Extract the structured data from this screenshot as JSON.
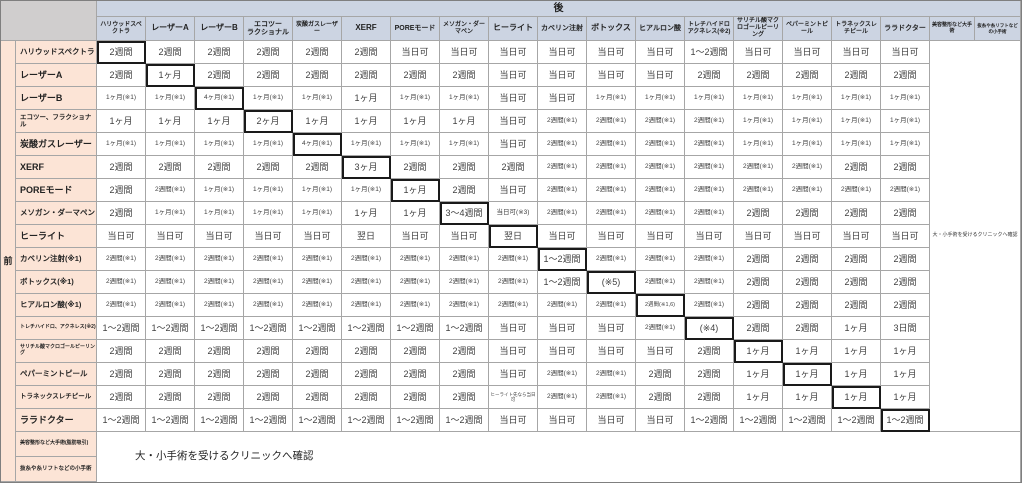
{
  "table": {
    "after_label": "後",
    "before_label": "前",
    "column_headers": [
      "ハリウッドスペクトラ",
      "レーザーA",
      "レーザーB",
      "エコツー\nラクショナル",
      "炭酸ガスレーザー",
      "XERF",
      "POREモード",
      "メソガン・ダーマペン",
      "ヒーライト",
      "カベリン注射",
      "ボトックス",
      "ヒアルロン酸",
      "トレチハイドロアクネレス(※2)",
      "サリチル酸マクロゴールピーリング",
      "ペパーミントピール",
      "トラネックスレチピール",
      "ララドクター",
      "美容整形など大手術",
      "抜糸や糸リフトなどの小手術"
    ],
    "rows": [
      {
        "label": "ハリウッドスペクトラ",
        "cells": [
          "2週間",
          "2週間",
          "2週間",
          "2週間",
          "2週間",
          "2週間",
          "当日可",
          "当日可",
          "当日可",
          "当日可",
          "当日可",
          "当日可",
          "1〜2週間",
          "当日可",
          "当日可",
          "当日可",
          "当日可"
        ]
      },
      {
        "label": "レーザーA",
        "cells": [
          "2週間",
          "1ヶ月",
          "2週間",
          "2週間",
          "2週間",
          "2週間",
          "2週間",
          "2週間",
          "当日可",
          "当日可",
          "当日可",
          "当日可",
          "2週間",
          "2週間",
          "2週間",
          "2週間",
          "2週間"
        ]
      },
      {
        "label": "レーザーB",
        "cells": [
          "1ヶ月(※1)",
          "1ヶ月(※1)",
          "4ヶ月(※1)",
          "1ヶ月(※1)",
          "1ヶ月(※1)",
          "1ヶ月",
          "1ヶ月(※1)",
          "1ヶ月(※1)",
          "当日可",
          "当日可",
          "1ヶ月(※1)",
          "1ヶ月(※1)",
          "1ヶ月(※1)",
          "1ヶ月(※1)",
          "1ヶ月(※1)",
          "1ヶ月(※1)",
          "1ヶ月(※1)"
        ]
      },
      {
        "label": "エコツー、フラクショナル",
        "cells": [
          "1ヶ月",
          "1ヶ月",
          "1ヶ月",
          "2ヶ月",
          "1ヶ月",
          "1ヶ月",
          "1ヶ月",
          "1ヶ月",
          "当日可",
          "2週間(※1)",
          "2週間(※1)",
          "2週間(※1)",
          "2週間(※1)",
          "1ヶ月(※1)",
          "1ヶ月(※1)",
          "1ヶ月(※1)",
          "1ヶ月(※1)"
        ]
      },
      {
        "label": "炭酸ガスレーザー",
        "cells": [
          "1ヶ月(※1)",
          "1ヶ月(※1)",
          "1ヶ月(※1)",
          "1ヶ月(※1)",
          "4ヶ月(※1)",
          "1ヶ月(※1)",
          "1ヶ月(※1)",
          "1ヶ月(※1)",
          "当日可",
          "2週間(※1)",
          "2週間(※1)",
          "2週間(※1)",
          "2週間(※1)",
          "1ヶ月(※1)",
          "1ヶ月(※1)",
          "1ヶ月(※1)",
          "1ヶ月(※1)"
        ]
      },
      {
        "label": "XERF",
        "cells": [
          "2週間",
          "2週間",
          "2週間",
          "2週間",
          "2週間",
          "3ヶ月",
          "2週間",
          "2週間",
          "2週間",
          "2週間(※1)",
          "2週間(※1)",
          "2週間(※1)",
          "2週間(※1)",
          "2週間(※1)",
          "2週間(※1)",
          "2週間",
          "2週間"
        ]
      },
      {
        "label": "POREモード",
        "cells": [
          "2週間",
          "2週間(※1)",
          "1ヶ月(※1)",
          "1ヶ月(※1)",
          "1ヶ月(※1)",
          "1ヶ月(※1)",
          "1ヶ月",
          "2週間",
          "当日可",
          "2週間(※1)",
          "2週間(※1)",
          "2週間(※1)",
          "2週間(※1)",
          "2週間(※1)",
          "2週間(※1)",
          "2週間(※1)",
          "2週間(※1)"
        ]
      },
      {
        "label": "メソガン・ダーマペン",
        "cells": [
          "2週間",
          "1ヶ月(※1)",
          "1ヶ月(※1)",
          "1ヶ月(※1)",
          "1ヶ月(※1)",
          "1ヶ月",
          "1ヶ月",
          "3〜4週間",
          "当日可(※3)",
          "2週間(※1)",
          "2週間(※1)",
          "2週間(※1)",
          "2週間(※1)",
          "2週間",
          "2週間",
          "2週間",
          "2週間"
        ]
      },
      {
        "label": "ヒーライト",
        "cells": [
          "当日可",
          "当日可",
          "当日可",
          "当日可",
          "当日可",
          "翌日",
          "当日可",
          "当日可",
          "翌日",
          "当日可",
          "当日可",
          "当日可",
          "当日可",
          "当日可",
          "当日可",
          "当日可",
          "当日可"
        ]
      },
      {
        "label": "カベリン注射(※1)",
        "cells": [
          "2週間(※1)",
          "2週間(※1)",
          "2週間(※1)",
          "2週間(※1)",
          "2週間(※1)",
          "2週間(※1)",
          "2週間(※1)",
          "2週間(※1)",
          "2週間(※1)",
          "1〜2週間",
          "2週間(※1)",
          "2週間(※1)",
          "2週間(※1)",
          "2週間",
          "2週間",
          "2週間",
          "2週間"
        ]
      },
      {
        "label": "ボトックス(※1)",
        "cells": [
          "2週間(※1)",
          "2週間(※1)",
          "2週間(※1)",
          "2週間(※1)",
          "2週間(※1)",
          "2週間(※1)",
          "2週間(※1)",
          "2週間(※1)",
          "2週間(※1)",
          "1〜2週間",
          "(※5)",
          "2週間(※1)",
          "2週間(※1)",
          "2週間",
          "2週間",
          "2週間",
          "2週間"
        ]
      },
      {
        "label": "ヒアルロン酸(※1)",
        "cells": [
          "2週間(※1)",
          "2週間(※1)",
          "2週間(※1)",
          "2週間(※1)",
          "2週間(※1)",
          "2週間(※1)",
          "2週間(※1)",
          "2週間(※1)",
          "2週間(※1)",
          "2週間(※1)",
          "2週間(※1)",
          "2週間(※1,6)",
          "2週間(※1)",
          "2週間",
          "2週間",
          "2週間",
          "2週間"
        ]
      },
      {
        "label": "トレチハイドロ、アクネレス(※2)",
        "cells": [
          "1〜2週間",
          "1〜2週間",
          "1〜2週間",
          "1〜2週間",
          "1〜2週間",
          "1〜2週間",
          "1〜2週間",
          "1〜2週間",
          "当日可",
          "当日可",
          "当日可",
          "2週間(※1)",
          "(※4)",
          "2週間",
          "2週間",
          "1ヶ月",
          "3日間"
        ]
      },
      {
        "label": "サリチル酸マクロゴールピーリング",
        "cells": [
          "2週間",
          "2週間",
          "2週間",
          "2週間",
          "2週間",
          "2週間",
          "2週間",
          "2週間",
          "当日可",
          "当日可",
          "当日可",
          "当日可",
          "2週間",
          "1ヶ月",
          "1ヶ月",
          "1ヶ月",
          "1ヶ月"
        ]
      },
      {
        "label": "ペパーミントピール",
        "cells": [
          "2週間",
          "2週間",
          "2週間",
          "2週間",
          "2週間",
          "2週間",
          "2週間",
          "2週間",
          "当日可",
          "2週間(※1)",
          "2週間(※1)",
          "2週間",
          "2週間",
          "1ヶ月",
          "1ヶ月",
          "1ヶ月",
          "1ヶ月"
        ]
      },
      {
        "label": "トラネックスレチピール",
        "cells": [
          "2週間",
          "2週間",
          "2週間",
          "2週間",
          "2週間",
          "2週間",
          "2週間",
          "2週間",
          "ヒーライト先なら当日可",
          "2週間(※1)",
          "2週間(※1)",
          "2週間",
          "2週間",
          "1ヶ月",
          "1ヶ月",
          "1ヶ月",
          "1ヶ月"
        ]
      },
      {
        "label": "ララドクター",
        "cells": [
          "1〜2週間",
          "1〜2週間",
          "1〜2週間",
          "1〜2週間",
          "1〜2週間",
          "1〜2週間",
          "1〜2週間",
          "1〜2週間",
          "当日可",
          "当日可",
          "当日可",
          "当日可",
          "1〜2週間",
          "1〜2週間",
          "1〜2週間",
          "1〜2週間",
          "1〜2週間"
        ]
      }
    ],
    "bottom_rows": [
      "美容整形など大手術(脂肪吸引)",
      "抜糸や糸リフトなどの小手術"
    ],
    "right_note": "大・小手術を受けるクリニックへ確認",
    "bottom_note": "大・小手術を受けるクリニックへ確認"
  },
  "colors": {
    "header_bg": "#ccd4e2",
    "label_bg": "#fce4d6",
    "corner_bg": "#d0cece",
    "grid_line": "#a6a6a6",
    "outer_border": "#7f7f7f",
    "highlight_border": "#1a1a1a",
    "cell_text": "#404040"
  }
}
